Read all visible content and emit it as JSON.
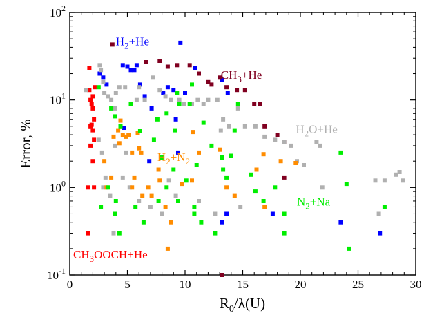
{
  "chart_data": {
    "type": "scatter",
    "title": "",
    "xlabel": {
      "main": "R",
      "sub": "0",
      "rest": "/λ(U)"
    },
    "ylabel": "Error, %",
    "xlim": [
      0,
      30
    ],
    "ylim": [
      0.1,
      100
    ],
    "yscale": "log",
    "grid": false,
    "xticks": [
      "0",
      "5",
      "10",
      "15",
      "20",
      "25",
      "30"
    ],
    "yticks": [
      {
        "base": "10",
        "exp": "-1"
      },
      {
        "base": "10",
        "exp": "0"
      },
      {
        "base": "10",
        "exp": "1"
      },
      {
        "base": "10",
        "exp": "2"
      }
    ],
    "series": [
      {
        "label_parts": [
          [
            "CH",
            false
          ],
          [
            "3",
            true
          ],
          [
            "OOCH+He",
            false
          ]
        ],
        "color": "#ff0000",
        "label_anchor": [
          0.3,
          0.155
        ],
        "points": [
          [
            1.6,
            0.3
          ],
          [
            1.6,
            1.0
          ],
          [
            1.7,
            23
          ],
          [
            1.7,
            13
          ],
          [
            1.8,
            10
          ],
          [
            1.9,
            9
          ],
          [
            2.0,
            8
          ],
          [
            1.8,
            5
          ],
          [
            2.0,
            4.5
          ],
          [
            2.1,
            6
          ],
          [
            1.8,
            3
          ],
          [
            2.0,
            2
          ],
          [
            2.1,
            1.0
          ],
          [
            2.2,
            14
          ],
          [
            2.0,
            11
          ],
          [
            1.9,
            5.2
          ],
          [
            2.1,
            3.5
          ]
        ]
      },
      {
        "label_parts": [
          [
            "H",
            false
          ],
          [
            "2",
            true
          ],
          [
            "+He",
            false
          ]
        ],
        "color": "#0000ff",
        "label_anchor": [
          4.0,
          42
        ],
        "points": [
          [
            2.6,
            20
          ],
          [
            2.9,
            18
          ],
          [
            3.2,
            15
          ],
          [
            4.6,
            25
          ],
          [
            5.0,
            24
          ],
          [
            5.3,
            22
          ],
          [
            5.6,
            22
          ],
          [
            5.8,
            25
          ],
          [
            6.1,
            15
          ],
          [
            6.5,
            11
          ],
          [
            7.1,
            8
          ],
          [
            8.1,
            12
          ],
          [
            8.5,
            14
          ],
          [
            9.0,
            13
          ],
          [
            9.2,
            6
          ],
          [
            9.6,
            45
          ],
          [
            10.0,
            12
          ],
          [
            10.9,
            23
          ],
          [
            13.2,
            17
          ],
          [
            13.7,
            12
          ],
          [
            4.7,
            4.8
          ],
          [
            6.9,
            2.0
          ],
          [
            9.4,
            2.5
          ],
          [
            13.2,
            0.4
          ],
          [
            13.6,
            0.5
          ],
          [
            17.6,
            0.5
          ],
          [
            23.5,
            0.4
          ],
          [
            26.9,
            0.3
          ]
        ]
      },
      {
        "label_parts": [
          [
            "CH",
            false
          ],
          [
            "3",
            true
          ],
          [
            "+He",
            false
          ]
        ],
        "color": "#800020",
        "label_anchor": [
          13.1,
          17.5
        ],
        "points": [
          [
            3.7,
            43
          ],
          [
            6.6,
            27
          ],
          [
            7.8,
            28
          ],
          [
            8.5,
            24
          ],
          [
            9.3,
            25
          ],
          [
            10.4,
            25
          ],
          [
            11.2,
            20
          ],
          [
            12.0,
            16
          ],
          [
            12.3,
            15
          ],
          [
            13.0,
            18
          ],
          [
            13.6,
            14
          ],
          [
            14.5,
            13
          ],
          [
            15.2,
            13
          ],
          [
            16.0,
            9
          ],
          [
            16.5,
            9
          ],
          [
            16.9,
            5
          ],
          [
            18.0,
            4
          ],
          [
            18.6,
            3.3
          ],
          [
            18.6,
            1.3
          ],
          [
            13.2,
            0.1
          ]
        ]
      },
      {
        "label_parts": [
          [
            "H",
            false
          ],
          [
            "2",
            true
          ],
          [
            "O+He",
            false
          ]
        ],
        "color": "#b0b0b0",
        "label_anchor": [
          19.6,
          4.2
        ],
        "points": [
          [
            1.4,
            13
          ],
          [
            2.6,
            25
          ],
          [
            2.7,
            22
          ],
          [
            2.9,
            16
          ],
          [
            3.0,
            12
          ],
          [
            3.3,
            11
          ],
          [
            3.6,
            10
          ],
          [
            3.9,
            8
          ],
          [
            4.0,
            12
          ],
          [
            4.3,
            14
          ],
          [
            4.8,
            14
          ],
          [
            5.8,
            10
          ],
          [
            6.0,
            14
          ],
          [
            6.5,
            10
          ],
          [
            7.2,
            18
          ],
          [
            7.8,
            13
          ],
          [
            8.3,
            11
          ],
          [
            8.8,
            10
          ],
          [
            9.5,
            10
          ],
          [
            9.9,
            9
          ],
          [
            10.6,
            9
          ],
          [
            11.1,
            10
          ],
          [
            11.6,
            9
          ],
          [
            12.0,
            10
          ],
          [
            12.8,
            10
          ],
          [
            13.3,
            6
          ],
          [
            13.8,
            5
          ],
          [
            14.6,
            8
          ],
          [
            15.2,
            5
          ],
          [
            16.1,
            5
          ],
          [
            16.9,
            3.8
          ],
          [
            17.8,
            3.5
          ],
          [
            18.6,
            3.3
          ],
          [
            19.2,
            3.0
          ],
          [
            19.7,
            2.0
          ],
          [
            20.3,
            1.8
          ],
          [
            21.4,
            3.3
          ],
          [
            21.7,
            3.0
          ],
          [
            21.9,
            1.0
          ],
          [
            26.5,
            1.2
          ],
          [
            26.8,
            0.5
          ],
          [
            27.3,
            1.2
          ],
          [
            28.3,
            1.4
          ],
          [
            28.6,
            1.5
          ],
          [
            28.9,
            1.2
          ],
          [
            2.5,
            3.5
          ],
          [
            2.8,
            2.5
          ],
          [
            3.1,
            1.3
          ],
          [
            3.5,
            0.8
          ],
          [
            3.8,
            0.3
          ],
          [
            4.6,
            1.3
          ],
          [
            5.2,
            1.0
          ],
          [
            6.0,
            0.7
          ],
          [
            7.0,
            0.6
          ],
          [
            8.0,
            0.5
          ],
          [
            8.6,
            1.2
          ],
          [
            9.2,
            0.8
          ],
          [
            11.2,
            0.7
          ],
          [
            12.6,
            0.5
          ],
          [
            13.1,
            4.5
          ],
          [
            14.8,
            0.6
          ],
          [
            2.9,
            1.0
          ],
          [
            3.9,
            3.0
          ],
          [
            4.9,
            2.5
          ]
        ]
      },
      {
        "label_parts": [
          [
            "H",
            false
          ],
          [
            "2",
            true
          ],
          [
            "+N",
            false
          ],
          [
            "2",
            true
          ]
        ],
        "color": "#ff8c00",
        "label_anchor": [
          7.6,
          2.0
        ],
        "points": [
          [
            3.0,
            2.0
          ],
          [
            3.2,
            1.0
          ],
          [
            3.6,
            1.3
          ],
          [
            3.8,
            3.8
          ],
          [
            4.2,
            4.5
          ],
          [
            4.3,
            3.2
          ],
          [
            4.4,
            5.8
          ],
          [
            4.6,
            4.0
          ],
          [
            4.9,
            3.8
          ],
          [
            5.1,
            4.0
          ],
          [
            5.4,
            2.5
          ],
          [
            5.6,
            1.3
          ],
          [
            5.9,
            4.2
          ],
          [
            6.0,
            2.8
          ],
          [
            6.2,
            2.5
          ],
          [
            6.8,
            1.0
          ],
          [
            7.1,
            0.8
          ],
          [
            7.7,
            1.6
          ],
          [
            7.8,
            1.2
          ],
          [
            8.3,
            0.6
          ],
          [
            8.8,
            0.4
          ],
          [
            6.3,
            0.8
          ],
          [
            5.4,
            1.0
          ],
          [
            10.7,
            4.3
          ],
          [
            11.2,
            2.5
          ],
          [
            13.0,
            2.7
          ],
          [
            13.6,
            1.0
          ],
          [
            14.3,
            0.8
          ],
          [
            16.2,
            1.6
          ],
          [
            16.8,
            2.4
          ],
          [
            16.9,
            0.6
          ],
          [
            18.3,
            2.0
          ],
          [
            19.6,
            1.9
          ],
          [
            8.5,
            0.2
          ],
          [
            10.6,
            1.2
          ],
          [
            9.7,
            1.1
          ]
        ]
      },
      {
        "label_parts": [
          [
            "N",
            false
          ],
          [
            "2",
            true
          ],
          [
            "+Na",
            false
          ]
        ],
        "color": "#00ee00",
        "label_anchor": [
          19.7,
          0.62
        ],
        "points": [
          [
            2.5,
            14
          ],
          [
            3.6,
            8
          ],
          [
            3.9,
            6.5
          ],
          [
            4.4,
            5
          ],
          [
            5.3,
            9
          ],
          [
            6.1,
            4.4
          ],
          [
            7.6,
            6
          ],
          [
            8.4,
            7
          ],
          [
            9.3,
            12
          ],
          [
            9.5,
            9
          ],
          [
            9.1,
            4.5
          ],
          [
            10.6,
            15
          ],
          [
            10.4,
            9
          ],
          [
            11.6,
            5.5
          ],
          [
            12.3,
            3
          ],
          [
            13.2,
            2.2
          ],
          [
            13.6,
            1.3
          ],
          [
            14.3,
            4.5
          ],
          [
            14.6,
            9
          ],
          [
            14.0,
            2.3
          ],
          [
            7.3,
            3.5
          ],
          [
            8.0,
            2.2
          ],
          [
            9.0,
            1.6
          ],
          [
            8.4,
            1.0
          ],
          [
            10.1,
            1.2
          ],
          [
            11.0,
            1.8
          ],
          [
            13.3,
            1.6
          ],
          [
            15.7,
            1.4
          ],
          [
            16.1,
            0.9
          ],
          [
            16.8,
            0.7
          ],
          [
            17.8,
            1.0
          ],
          [
            18.6,
            0.5
          ],
          [
            18.6,
            0.3
          ],
          [
            24.0,
            1.1
          ],
          [
            24.2,
            0.2
          ],
          [
            23.5,
            2.5
          ],
          [
            27.3,
            0.6
          ],
          [
            3.9,
            0.5
          ],
          [
            4.0,
            0.7
          ],
          [
            4.3,
            0.3
          ],
          [
            5.7,
            0.6
          ],
          [
            6.4,
            0.4
          ],
          [
            7.7,
            0.7
          ],
          [
            9.4,
            0.7
          ],
          [
            10.8,
            0.6
          ],
          [
            10.8,
            0.5
          ],
          [
            11.4,
            0.4
          ],
          [
            12.6,
            0.3
          ],
          [
            3.3,
            1.0
          ],
          [
            2.7,
            0.6
          ]
        ]
      }
    ]
  }
}
